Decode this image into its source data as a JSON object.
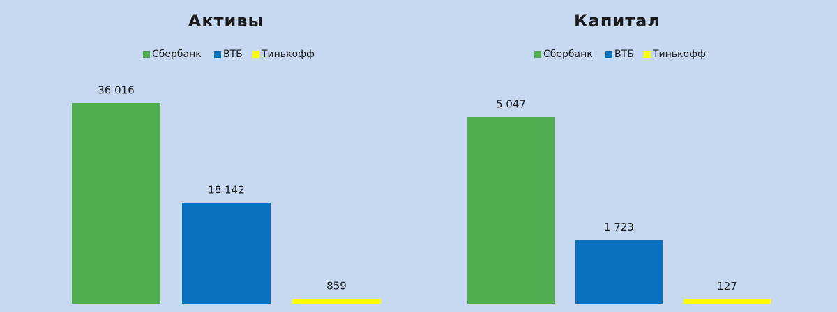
{
  "chart_data": [
    {
      "type": "bar",
      "title": "Активы",
      "series": [
        {
          "name": "Сбербанк",
          "color": "#4fae50",
          "values": [
            36016
          ],
          "value_labels": [
            "36 016"
          ]
        },
        {
          "name": "ВТБ",
          "color": "#0a70c0",
          "values": [
            18142
          ],
          "value_labels": [
            "18 142"
          ]
        },
        {
          "name": "Тинькофф",
          "color": "#ffff00",
          "values": [
            859
          ],
          "value_labels": [
            "859"
          ]
        }
      ]
    },
    {
      "type": "bar",
      "title": "Капитал",
      "series": [
        {
          "name": "Сбербанк",
          "color": "#4fae50",
          "values": [
            5047
          ],
          "value_labels": [
            "5 047"
          ]
        },
        {
          "name": "ВТБ",
          "color": "#0a70c0",
          "values": [
            1723
          ],
          "value_labels": [
            "1 723"
          ]
        },
        {
          "name": "Тинькофф",
          "color": "#ffff00",
          "values": [
            127
          ],
          "value_labels": [
            "127"
          ]
        }
      ]
    }
  ]
}
